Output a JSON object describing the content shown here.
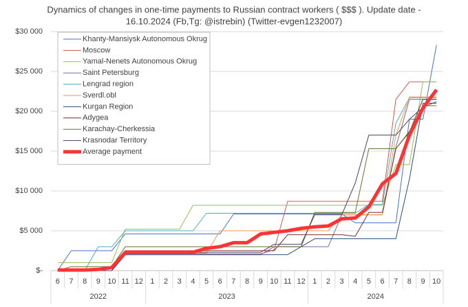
{
  "chart_data": {
    "type": "line",
    "title": [
      "Dynamics of changes in one-time payments to Russian contract workers ( $$$ ). Update date -",
      "16.10.2024      (Fb,Tg: @istrebin) (Twitter-evgen1232007)"
    ],
    "categories": [
      "6",
      "7",
      "8",
      "9",
      "10",
      "11",
      "12",
      "1",
      "2",
      "3",
      "4",
      "5",
      "6",
      "7",
      "8",
      "9",
      "10",
      "11",
      "12",
      "1",
      "2",
      "3",
      "4",
      "5",
      "6",
      "7",
      "8",
      "9",
      "10"
    ],
    "category_years": [
      "2022",
      "2022",
      "2022",
      "2022",
      "2022",
      "2022",
      "2022",
      "2023",
      "2023",
      "2023",
      "2023",
      "2023",
      "2023",
      "2023",
      "2023",
      "2023",
      "2023",
      "2023",
      "2023",
      "2024",
      "2024",
      "2024",
      "2024",
      "2024",
      "2024",
      "2024",
      "2024",
      "2024",
      "2024"
    ],
    "ylim": [
      0,
      30000
    ],
    "yticks": [
      {
        "value": 0,
        "label": "$-"
      },
      {
        "value": 5000,
        "label": "$5 000"
      },
      {
        "value": 10000,
        "label": "$10 000"
      },
      {
        "value": 15000,
        "label": "$15 000"
      },
      {
        "value": 20000,
        "label": "$20 000"
      },
      {
        "value": 25000,
        "label": "$25 000"
      },
      {
        "value": 30000,
        "label": "$30 000"
      }
    ],
    "grid": true,
    "legend": "upper-left",
    "series": [
      {
        "name": "Khanty-Mansiysk Autonomous Okrug",
        "color": "#4472c4",
        "width": 1,
        "values": [
          0,
          2500,
          2500,
          2500,
          2500,
          4600,
          4600,
          4600,
          4600,
          4600,
          4600,
          4600,
          4600,
          7100,
          7100,
          7100,
          7100,
          7100,
          7100,
          7100,
          7100,
          7100,
          6000,
          6000,
          6000,
          6000,
          19000,
          19000,
          28300
        ]
      },
      {
        "name": "Moscow",
        "color": "#d9534f",
        "width": 1,
        "values": [
          0,
          0,
          0,
          0,
          0,
          2100,
          2100,
          2100,
          2100,
          2100,
          2100,
          2100,
          2100,
          2100,
          2100,
          2100,
          2600,
          8700,
          8700,
          8700,
          8700,
          8700,
          8700,
          8700,
          8700,
          21500,
          23700,
          23700,
          23700
        ]
      },
      {
        "name": "Yamal-Nenets Autonomous Okrug",
        "color": "#9bbb59",
        "width": 1,
        "values": [
          1000,
          1000,
          1000,
          1000,
          1000,
          5200,
          5200,
          5200,
          5200,
          5200,
          8200,
          8200,
          8200,
          8200,
          8200,
          8200,
          8200,
          8200,
          8200,
          8200,
          8200,
          8200,
          8200,
          8200,
          8200,
          13300,
          13300,
          23700,
          23700
        ]
      },
      {
        "name": "Saint Petersburg",
        "color": "#8064a2",
        "width": 1,
        "values": [
          0,
          0,
          0,
          0,
          0,
          2000,
          2000,
          2000,
          2000,
          2000,
          2000,
          2000,
          2000,
          2000,
          2000,
          2000,
          3000,
          3000,
          3000,
          3000,
          3000,
          7000,
          7000,
          7000,
          7000,
          15500,
          21500,
          21500,
          21500
        ]
      },
      {
        "name": "Lengrad region",
        "color": "#4bacc6",
        "width": 1,
        "values": [
          0,
          0,
          0,
          3000,
          3000,
          5000,
          5000,
          5000,
          5000,
          5000,
          5000,
          7200,
          7200,
          7200,
          7200,
          7200,
          7200,
          7200,
          7200,
          7200,
          7200,
          7200,
          7200,
          8300,
          8300,
          18500,
          21700,
          21700,
          21700
        ]
      },
      {
        "name": "Sverdl.obl",
        "color": "#f79646",
        "width": 1,
        "values": [
          0,
          0,
          0,
          0,
          0,
          2200,
          2200,
          2200,
          2200,
          2200,
          2200,
          2200,
          5000,
          5000,
          5000,
          5000,
          5000,
          5000,
          5000,
          5000,
          5000,
          7000,
          7000,
          7000,
          7000,
          17000,
          21800,
          21800,
          21800
        ]
      },
      {
        "name": "Kurgan Region",
        "color": "#2c4d75",
        "width": 1,
        "values": [
          0,
          0,
          0,
          0,
          0,
          2000,
          2000,
          2000,
          2000,
          2000,
          2000,
          2000,
          2000,
          2000,
          2000,
          2000,
          2000,
          2000,
          3000,
          4000,
          4000,
          4000,
          4000,
          4000,
          4000,
          4000,
          11500,
          21000,
          21000
        ]
      },
      {
        "name": "Adygea",
        "color": "#772c2a",
        "width": 1,
        "values": [
          0,
          0,
          0,
          0,
          0,
          2500,
          2500,
          2500,
          2500,
          2500,
          2500,
          2500,
          2500,
          2500,
          2500,
          2500,
          2500,
          4500,
          4500,
          4500,
          4500,
          4500,
          4300,
          7300,
          7300,
          15300,
          17400,
          21500,
          21500
        ]
      },
      {
        "name": "Karachay-Cherkessia",
        "color": "#5f7530",
        "width": 1,
        "values": [
          0,
          500,
          500,
          500,
          500,
          3000,
          3000,
          3000,
          3000,
          3000,
          3000,
          3000,
          3000,
          3000,
          3000,
          3000,
          3000,
          3000,
          3000,
          7300,
          7300,
          7300,
          7300,
          15300,
          15300,
          15300,
          17500,
          20700,
          20700
        ]
      },
      {
        "name": "Krasnodar Territory",
        "color": "#4d3b62",
        "width": 1,
        "values": [
          0,
          0,
          0,
          0,
          0,
          2300,
          2300,
          2300,
          2300,
          2300,
          2300,
          2300,
          2300,
          2300,
          2300,
          2300,
          3300,
          3300,
          3300,
          7000,
          7000,
          7000,
          11000,
          17000,
          17000,
          17000,
          19000,
          20500,
          21200
        ]
      },
      {
        "name": "Average payment",
        "color": "#ff3333",
        "width": 5,
        "values": [
          80,
          80,
          80,
          150,
          400,
          2300,
          2300,
          2300,
          2300,
          2300,
          2300,
          2800,
          3000,
          3500,
          3500,
          4600,
          4800,
          5000,
          5300,
          5500,
          5600,
          6500,
          6600,
          8000,
          10900,
          12200,
          17000,
          20400,
          22700
        ]
      }
    ]
  }
}
